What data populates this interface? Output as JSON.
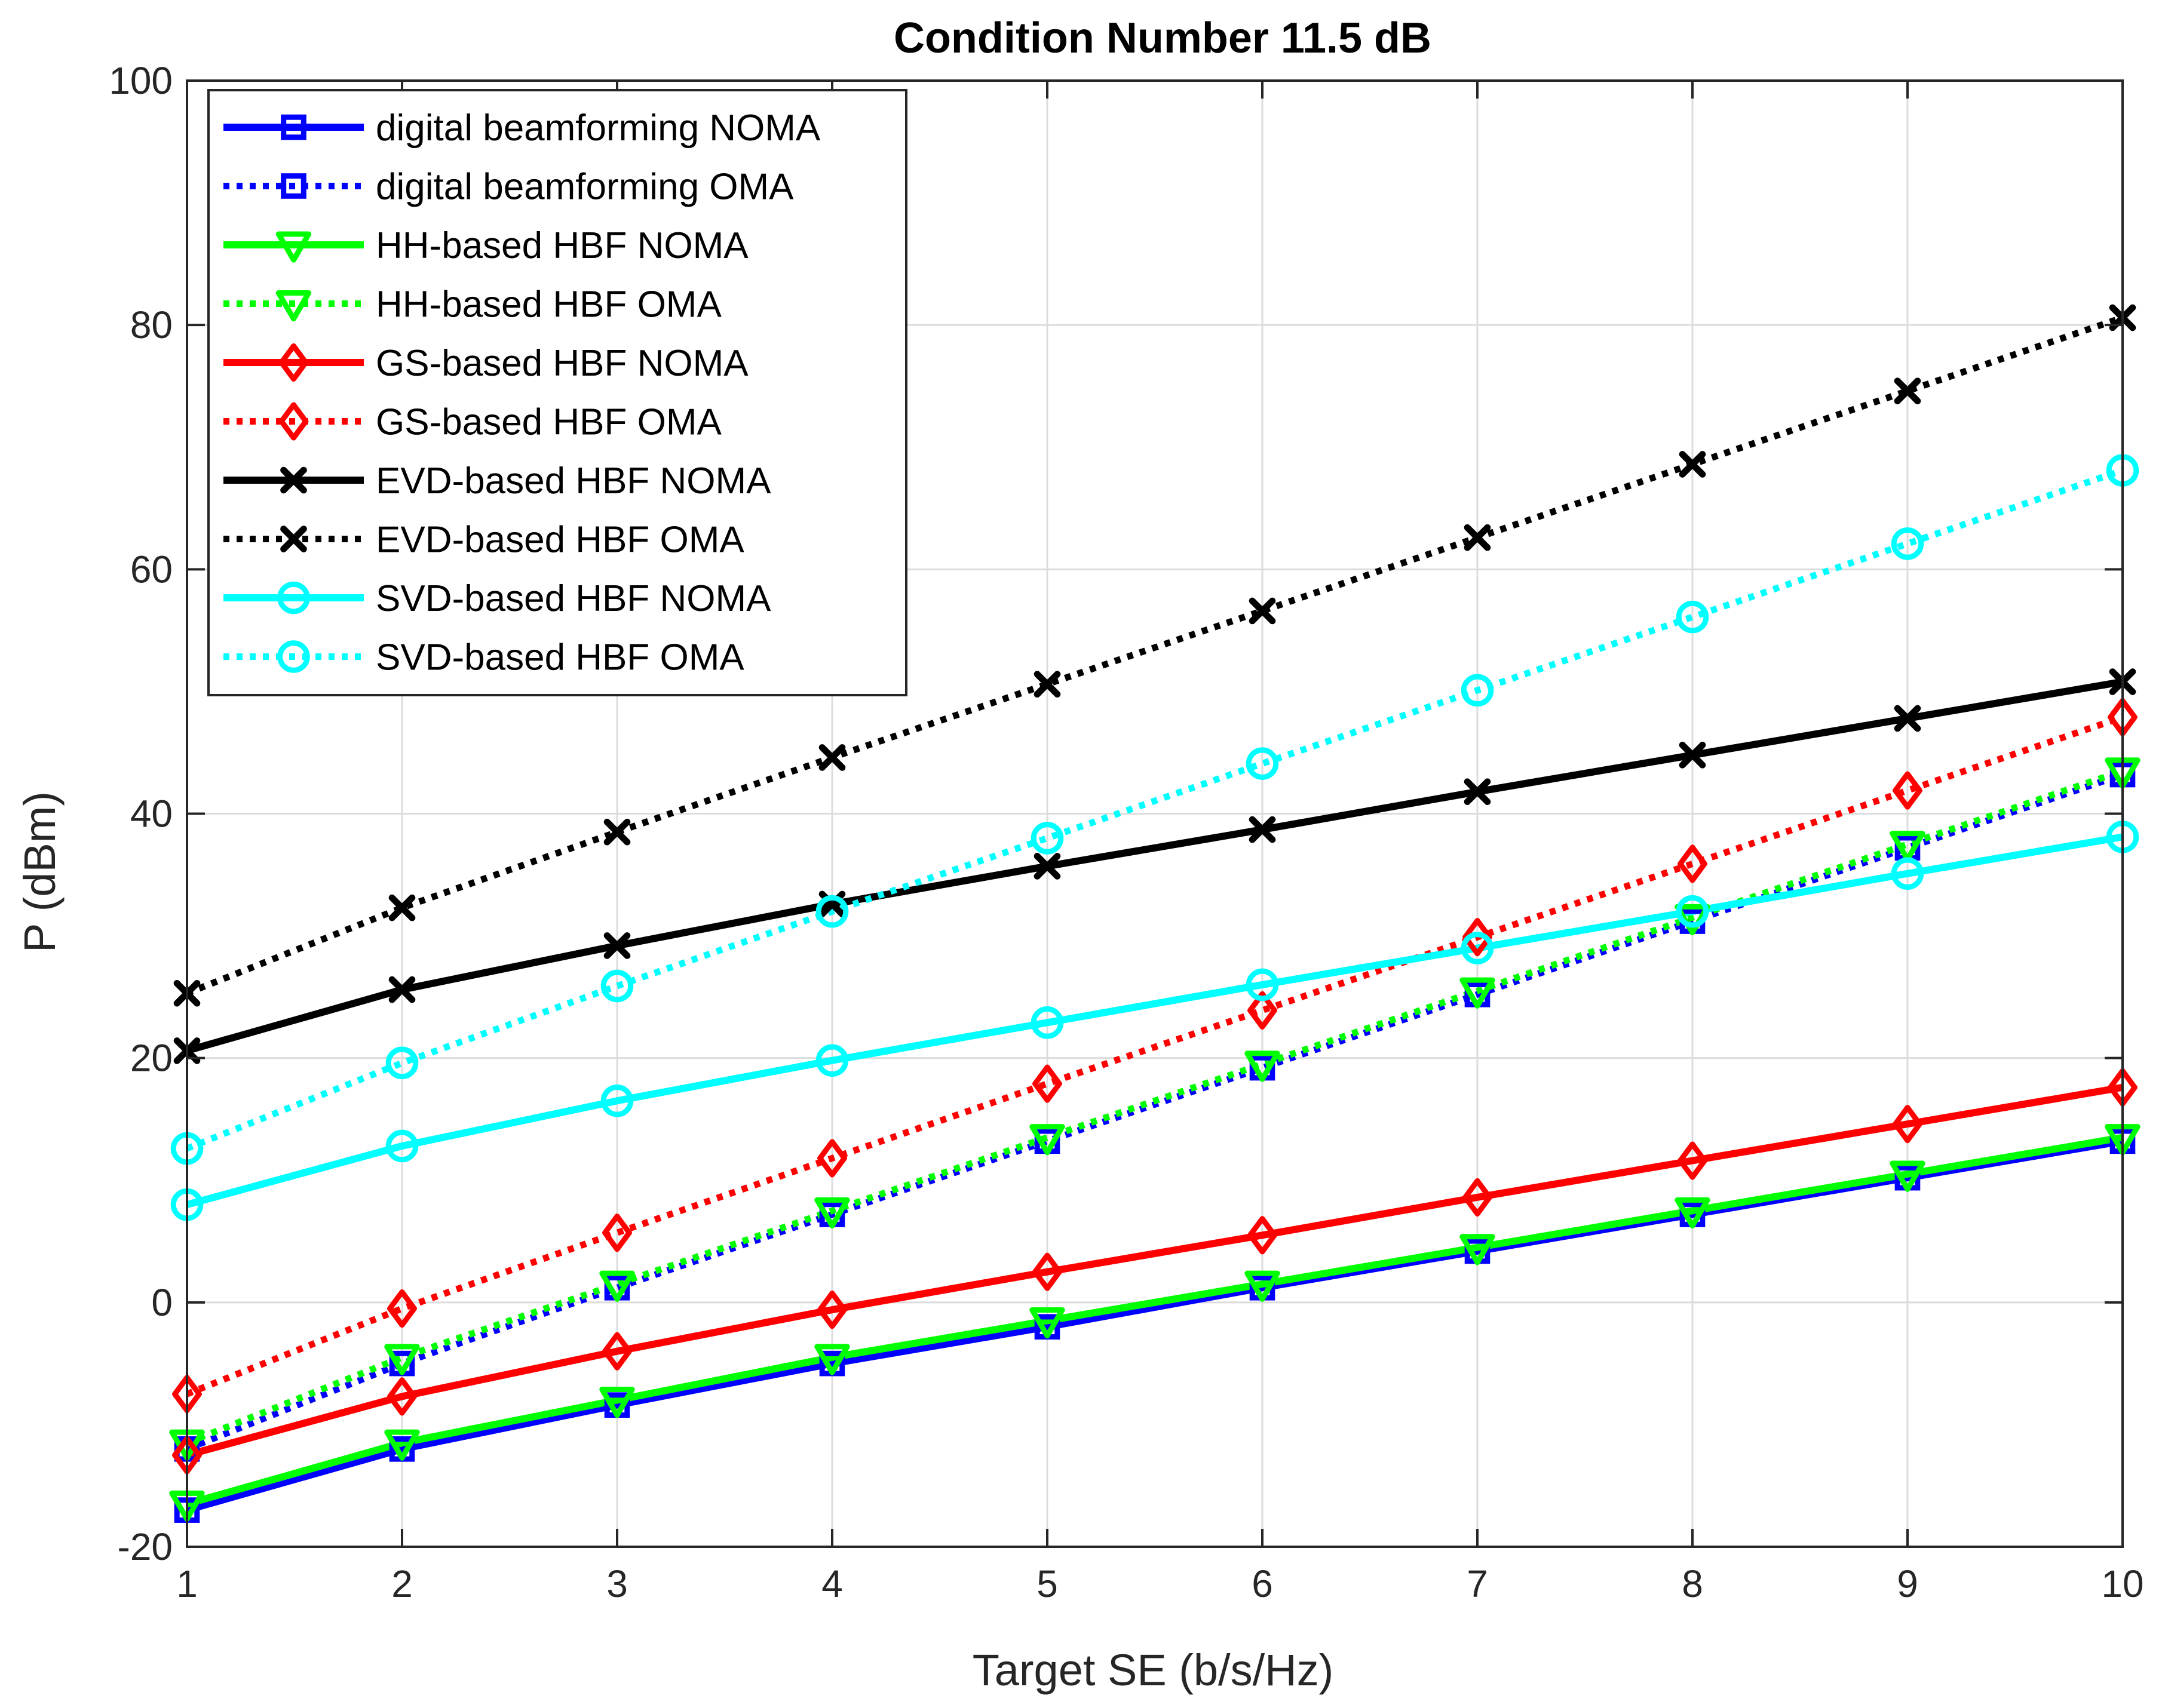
{
  "chart_data": {
    "type": "line",
    "title": "Condition Number 11.5 dB",
    "xlabel": "Target SE (b/s/Hz)",
    "ylabel": "P (dBm)",
    "xlim": [
      1,
      10
    ],
    "ylim": [
      -20,
      100
    ],
    "xticks": [
      1,
      2,
      3,
      4,
      5,
      6,
      7,
      8,
      9,
      10
    ],
    "yticks": [
      -20,
      0,
      20,
      40,
      60,
      80,
      100
    ],
    "xtick_labels": [
      "1",
      "2",
      "3",
      "4",
      "5",
      "6",
      "7",
      "8",
      "9",
      "10"
    ],
    "ytick_labels": [
      "-20",
      "0",
      "20",
      "40",
      "60",
      "80",
      "100"
    ],
    "grid": true,
    "legend_position": "top-left",
    "x": [
      1,
      2,
      3,
      4,
      5,
      6,
      7,
      8,
      9,
      10
    ],
    "series": [
      {
        "name": "digital beamforming NOMA",
        "color": "#0000ff",
        "style": "solid",
        "marker": "square",
        "values": [
          -17,
          -12,
          -8.4,
          -5,
          -2,
          1.2,
          4.2,
          7.2,
          10.2,
          13.2
        ]
      },
      {
        "name": "digital beamforming OMA",
        "color": "#0000ff",
        "style": "dotted",
        "marker": "square",
        "values": [
          -12,
          -5,
          1.2,
          7.2,
          13.2,
          19.2,
          25.2,
          31.2,
          37.2,
          43.2
        ]
      },
      {
        "name": "HH-based HBF NOMA",
        "color": "#00ff00",
        "style": "solid",
        "marker": "triangle-down",
        "values": [
          -16.5,
          -11.5,
          -8,
          -4.5,
          -1.5,
          1.5,
          4.5,
          7.5,
          10.5,
          13.5
        ]
      },
      {
        "name": "HH-based HBF OMA",
        "color": "#00ff00",
        "style": "dotted",
        "marker": "triangle-down",
        "values": [
          -11.5,
          -4.5,
          1.5,
          7.5,
          13.5,
          19.5,
          25.5,
          31.5,
          37.5,
          43.5
        ]
      },
      {
        "name": "GS-based HBF NOMA",
        "color": "#ff0000",
        "style": "solid",
        "marker": "diamond",
        "values": [
          -12.5,
          -7.7,
          -4,
          -0.6,
          2.5,
          5.5,
          8.6,
          11.6,
          14.6,
          17.6
        ]
      },
      {
        "name": "GS-based HBF OMA",
        "color": "#ff0000",
        "style": "dotted",
        "marker": "diamond",
        "values": [
          -7.5,
          -0.5,
          5.7,
          11.8,
          17.9,
          23.9,
          29.9,
          35.9,
          41.9,
          47.9
        ]
      },
      {
        "name": "EVD-based HBF NOMA",
        "color": "#000000",
        "style": "solid",
        "marker": "x",
        "values": [
          20.6,
          25.6,
          29.2,
          32.6,
          35.7,
          38.7,
          41.8,
          44.8,
          47.8,
          50.8
        ]
      },
      {
        "name": "EVD-based HBF OMA",
        "color": "#000000",
        "style": "dotted",
        "marker": "x",
        "values": [
          25.3,
          32.3,
          38.5,
          44.6,
          50.6,
          56.6,
          62.6,
          68.6,
          74.6,
          80.6
        ]
      },
      {
        "name": "SVD-based HBF NOMA",
        "color": "#00ffff",
        "style": "solid",
        "marker": "circle",
        "values": [
          8,
          12.8,
          16.5,
          19.8,
          22.9,
          26,
          29,
          32,
          35.1,
          38.1
        ]
      },
      {
        "name": "SVD-based HBF OMA",
        "color": "#00ffff",
        "style": "dotted",
        "marker": "circle",
        "values": [
          12.6,
          19.6,
          25.9,
          32,
          38,
          44.1,
          50.1,
          56.1,
          62.1,
          68.1
        ]
      }
    ]
  }
}
